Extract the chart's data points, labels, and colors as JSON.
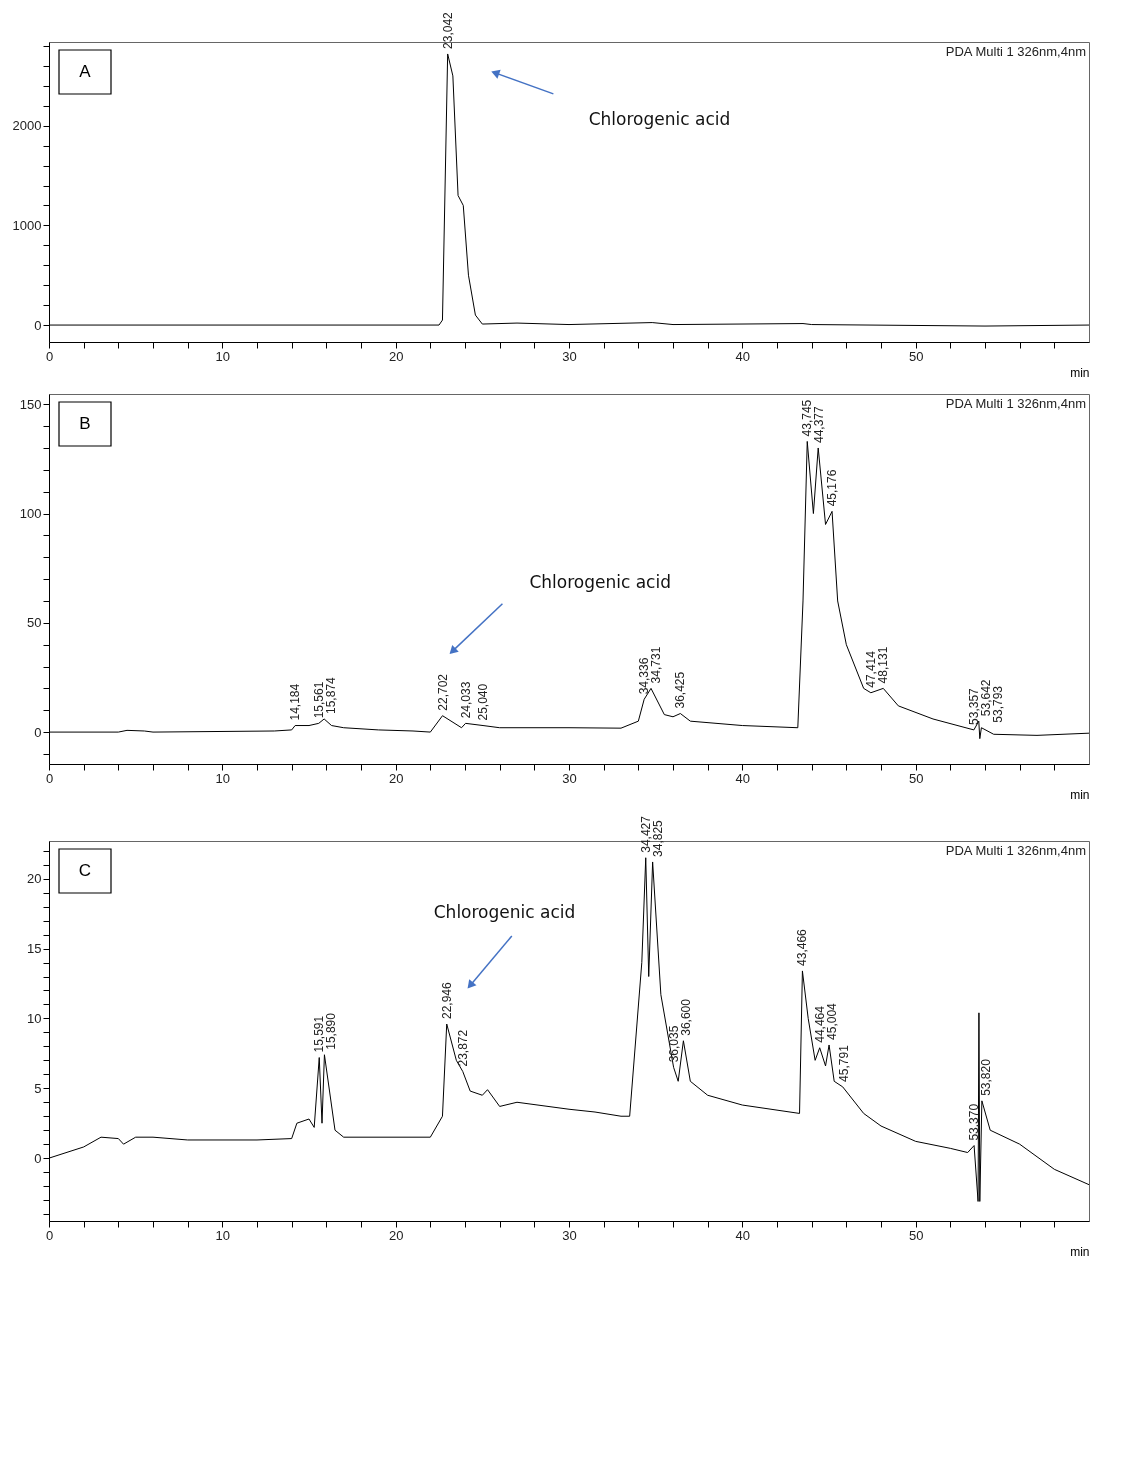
{
  "chart_data": [
    {
      "type": "line",
      "xlabel": "min",
      "xlim": [
        0,
        60
      ],
      "ylim": [
        -170,
        2840
      ],
      "grid": false,
      "legend": false,
      "xticks": [
        0,
        {
          "value": 2,
          "label": null
        },
        {
          "value": 4,
          "label": null
        },
        {
          "value": 6,
          "label": null
        },
        {
          "value": 8,
          "label": null
        },
        10,
        {
          "value": 12,
          "label": null
        },
        {
          "value": 14,
          "label": null
        },
        {
          "value": 16,
          "label": null
        },
        {
          "value": 18,
          "label": null
        },
        20,
        {
          "value": 22,
          "label": null
        },
        {
          "value": 24,
          "label": null
        },
        {
          "value": 26,
          "label": null
        },
        {
          "value": 28,
          "label": null
        },
        30,
        {
          "value": 32,
          "label": null
        },
        {
          "value": 34,
          "label": null
        },
        {
          "value": 36,
          "label": null
        },
        {
          "value": 38,
          "label": null
        },
        40,
        {
          "value": 42,
          "label": null
        },
        {
          "value": 44,
          "label": null
        },
        {
          "value": 46,
          "label": null
        },
        {
          "value": 48,
          "label": null
        },
        50,
        {
          "value": 52,
          "label": null
        },
        {
          "value": 54,
          "label": null
        },
        {
          "value": 56,
          "label": null
        },
        {
          "value": 58,
          "label": null
        }
      ],
      "yticks": [
        0,
        {
          "value": 200,
          "label": null
        },
        {
          "value": 400,
          "label": null
        },
        {
          "value": 600,
          "label": null
        },
        {
          "value": 800,
          "label": null
        },
        1000,
        {
          "value": 1200,
          "label": null
        },
        {
          "value": 1400,
          "label": null
        },
        {
          "value": 1600,
          "label": null
        },
        {
          "value": 1800,
          "label": null
        },
        2000,
        {
          "value": 2200,
          "label": null
        },
        {
          "value": 2400,
          "label": null
        },
        {
          "value": 2600,
          "label": null
        },
        {
          "value": 2800,
          "label": null
        }
      ],
      "series": [
        {
          "color": "#000000",
          "x": [
            0,
            22.5,
            22.7,
            23.0,
            23.3,
            23.6,
            23.9,
            24.2,
            24.6,
            25,
            27,
            30,
            34.8,
            36,
            43.5,
            44,
            54,
            60
          ],
          "values": [
            0,
            0,
            50,
            2720,
            2500,
            1300,
            1200,
            500,
            100,
            10,
            20,
            5,
            25,
            5,
            15,
            5,
            -10,
            0
          ]
        }
      ],
      "annotations": [
        "A",
        "PDA Multi 1 326nm,4nm",
        "Chlorogenic acid",
        {
          "text": "23,042",
          "x": 23.042,
          "y": 2720
        }
      ]
    },
    {
      "type": "line",
      "xlabel": "min",
      "xlim": [
        0,
        60
      ],
      "ylim": [
        -14.6,
        154.7
      ],
      "grid": false,
      "legend": false,
      "xticks": [
        0,
        {
          "value": 2,
          "label": null
        },
        {
          "value": 4,
          "label": null
        },
        {
          "value": 6,
          "label": null
        },
        {
          "value": 8,
          "label": null
        },
        10,
        {
          "value": 12,
          "label": null
        },
        {
          "value": 14,
          "label": null
        },
        {
          "value": 16,
          "label": null
        },
        {
          "value": 18,
          "label": null
        },
        20,
        {
          "value": 22,
          "label": null
        },
        {
          "value": 24,
          "label": null
        },
        {
          "value": 26,
          "label": null
        },
        {
          "value": 28,
          "label": null
        },
        30,
        {
          "value": 32,
          "label": null
        },
        {
          "value": 34,
          "label": null
        },
        {
          "value": 36,
          "label": null
        },
        {
          "value": 38,
          "label": null
        },
        40,
        {
          "value": 42,
          "label": null
        },
        {
          "value": 44,
          "label": null
        },
        {
          "value": 46,
          "label": null
        },
        {
          "value": 48,
          "label": null
        },
        50,
        {
          "value": 52,
          "label": null
        },
        {
          "value": 54,
          "label": null
        },
        {
          "value": 56,
          "label": null
        },
        {
          "value": 58,
          "label": null
        }
      ],
      "yticks": [
        {
          "value": -10,
          "label": null
        },
        0,
        {
          "value": 10,
          "label": null
        },
        {
          "value": 20,
          "label": null
        },
        {
          "value": 30,
          "label": null
        },
        {
          "value": 40,
          "label": null
        },
        50,
        {
          "value": 60,
          "label": null
        },
        {
          "value": 70,
          "label": null
        },
        {
          "value": 80,
          "label": null
        },
        {
          "value": 90,
          "label": null
        },
        100,
        {
          "value": 110,
          "label": null
        },
        {
          "value": 120,
          "label": null
        },
        {
          "value": 130,
          "label": null
        },
        {
          "value": 140,
          "label": null
        },
        150
      ],
      "series": [
        {
          "color": "#000000",
          "x": [
            0,
            4,
            4.5,
            5.5,
            6,
            13,
            14,
            14.2,
            15,
            15.561,
            15.874,
            16.3,
            17,
            19,
            21,
            22,
            22.702,
            23.8,
            24.033,
            25.04,
            26,
            30,
            33,
            34,
            34.336,
            34.731,
            35.5,
            36,
            36.425,
            37,
            40,
            43.2,
            43.5,
            43.745,
            44.1,
            44.377,
            44.8,
            45.176,
            45.5,
            46,
            47,
            47.414,
            48.131,
            49,
            51,
            53.357,
            53.642,
            53.7,
            53.793,
            54.5,
            57,
            60
          ],
          "values": [
            0,
            0,
            0.8,
            0.5,
            0,
            0.5,
            1,
            3,
            3,
            4,
            6,
            3,
            2,
            1,
            0.5,
            0,
            7.5,
            2,
            4,
            3,
            2,
            2,
            1.8,
            5,
            15,
            20,
            8,
            7,
            8.5,
            5,
            3,
            2,
            60,
            133,
            100,
            130,
            95,
            101,
            60,
            40,
            20,
            18,
            20,
            12,
            6,
            1,
            5,
            -3,
            2,
            -1,
            -1.5,
            -0.5
          ]
        }
      ],
      "annotations": [
        "B",
        "PDA Multi 1 326nm,4nm",
        "Chlorogenic acid",
        {
          "text": "14,184",
          "x": 14.184,
          "y": 3
        },
        {
          "text": "15,561",
          "x": 15.561,
          "y": 4
        },
        {
          "text": "15,874",
          "x": 15.874,
          "y": 6
        },
        {
          "text": "22,702",
          "x": 22.702,
          "y": 7.5
        },
        {
          "text": "24,033",
          "x": 24.033,
          "y": 4
        },
        {
          "text": "25,040",
          "x": 25.04,
          "y": 3
        },
        {
          "text": "34,336",
          "x": 34.336,
          "y": 15
        },
        {
          "text": "34,731",
          "x": 34.731,
          "y": 20
        },
        {
          "text": "36,425",
          "x": 36.425,
          "y": 8.5
        },
        {
          "text": "43,745",
          "x": 43.745,
          "y": 133
        },
        {
          "text": "44,377",
          "x": 44.377,
          "y": 130
        },
        {
          "text": "45,176",
          "x": 45.176,
          "y": 101
        },
        {
          "text": "47,414",
          "x": 47.414,
          "y": 18
        },
        {
          "text": "48,131",
          "x": 48.131,
          "y": 20
        },
        {
          "text": "53,357",
          "x": 53.357,
          "y": 1
        },
        {
          "text": "53,642",
          "x": 53.642,
          "y": 5
        },
        {
          "text": "53,793",
          "x": 53.793,
          "y": 2
        }
      ]
    },
    {
      "type": "line",
      "xlabel": "min",
      "xlim": [
        0,
        60
      ],
      "ylim": [
        -4.5,
        22.7
      ],
      "grid": false,
      "legend": false,
      "xticks": [
        0,
        {
          "value": 2,
          "label": null
        },
        {
          "value": 4,
          "label": null
        },
        {
          "value": 6,
          "label": null
        },
        {
          "value": 8,
          "label": null
        },
        10,
        {
          "value": 12,
          "label": null
        },
        {
          "value": 14,
          "label": null
        },
        {
          "value": 16,
          "label": null
        },
        {
          "value": 18,
          "label": null
        },
        20,
        {
          "value": 22,
          "label": null
        },
        {
          "value": 24,
          "label": null
        },
        {
          "value": 26,
          "label": null
        },
        {
          "value": 28,
          "label": null
        },
        30,
        {
          "value": 32,
          "label": null
        },
        {
          "value": 34,
          "label": null
        },
        {
          "value": 36,
          "label": null
        },
        {
          "value": 38,
          "label": null
        },
        40,
        {
          "value": 42,
          "label": null
        },
        {
          "value": 44,
          "label": null
        },
        {
          "value": 46,
          "label": null
        },
        {
          "value": 48,
          "label": null
        },
        50,
        {
          "value": 52,
          "label": null
        },
        {
          "value": 54,
          "label": null
        },
        {
          "value": 56,
          "label": null
        },
        {
          "value": 58,
          "label": null
        }
      ],
      "yticks": [
        {
          "value": -4,
          "label": null
        },
        {
          "value": -3,
          "label": null
        },
        {
          "value": -2,
          "label": null
        },
        {
          "value": -1,
          "label": null
        },
        0,
        {
          "value": 1,
          "label": null
        },
        {
          "value": 2,
          "label": null
        },
        {
          "value": 3,
          "label": null
        },
        {
          "value": 4,
          "label": null
        },
        5,
        {
          "value": 6,
          "label": null
        },
        {
          "value": 7,
          "label": null
        },
        {
          "value": 8,
          "label": null
        },
        {
          "value": 9,
          "label": null
        },
        10,
        {
          "value": 11,
          "label": null
        },
        {
          "value": 12,
          "label": null
        },
        {
          "value": 13,
          "label": null
        },
        {
          "value": 14,
          "label": null
        },
        15,
        {
          "value": 16,
          "label": null
        },
        {
          "value": 17,
          "label": null
        },
        {
          "value": 18,
          "label": null
        },
        {
          "value": 19,
          "label": null
        },
        20,
        {
          "value": 21,
          "label": null
        },
        {
          "value": 22,
          "label": null
        }
      ],
      "series": [
        {
          "color": "#000000",
          "x": [
            0,
            2,
            3,
            4,
            4.3,
            5,
            6,
            8,
            12,
            14,
            14.3,
            15,
            15.3,
            15.591,
            15.75,
            15.89,
            16.5,
            17,
            22,
            22.7,
            22.946,
            23.5,
            23.872,
            24.3,
            25,
            25.3,
            26,
            27,
            30,
            31.5,
            33,
            33.5,
            34.2,
            34.427,
            34.6,
            34.825,
            35.3,
            36.035,
            36.3,
            36.6,
            37,
            38,
            40,
            43.3,
            43.466,
            43.8,
            44.2,
            44.464,
            44.8,
            45.004,
            45.3,
            45.791,
            47,
            48,
            50,
            52,
            53,
            53.37,
            53.6,
            53.65,
            53.7,
            53.82,
            54.3,
            56,
            58,
            60
          ],
          "values": [
            0,
            0.8,
            1.5,
            1.4,
            1,
            1.5,
            1.5,
            1.3,
            1.3,
            1.4,
            2.5,
            2.8,
            2.2,
            7.2,
            2.5,
            7.4,
            2,
            1.5,
            1.5,
            3,
            9.6,
            7,
            6.2,
            4.8,
            4.5,
            4.9,
            3.7,
            4,
            3.5,
            3.3,
            3,
            3,
            14,
            21.5,
            13,
            21.2,
            11.7,
            6.5,
            5.5,
            8.4,
            5.5,
            4.5,
            3.8,
            3.2,
            13.4,
            10,
            7,
            7.9,
            6.6,
            8.1,
            5.5,
            5.1,
            3.2,
            2.3,
            1.2,
            0.7,
            0.4,
            0.9,
            -3.1,
            10.4,
            -3.1,
            4.1,
            2,
            1,
            -0.8,
            -1.9
          ]
        }
      ],
      "annotations": [
        "C",
        "PDA Multi 1 326nm,4nm",
        "Chlorogenic acid",
        {
          "text": "15,591",
          "x": 15.591,
          "y": 7.2
        },
        {
          "text": "15,890",
          "x": 15.89,
          "y": 7.4
        },
        {
          "text": "22,946",
          "x": 22.946,
          "y": 9.6
        },
        {
          "text": "23,872",
          "x": 23.872,
          "y": 6.2
        },
        {
          "text": "34,427",
          "x": 34.427,
          "y": 21.5
        },
        {
          "text": "34,825",
          "x": 34.825,
          "y": 21.2
        },
        {
          "text": "36,035",
          "x": 36.035,
          "y": 6.5
        },
        {
          "text": "36,600",
          "x": 36.6,
          "y": 8.4
        },
        {
          "text": "43,466",
          "x": 43.466,
          "y": 13.4
        },
        {
          "text": "44,464",
          "x": 44.464,
          "y": 7.9
        },
        {
          "text": "45,004",
          "x": 45.004,
          "y": 8.1
        },
        {
          "text": "45,791",
          "x": 45.791,
          "y": 5.1
        },
        {
          "text": "53,370",
          "x": 53.37,
          "y": 0.9
        },
        {
          "text": "53,820",
          "x": 53.82,
          "y": 4.1
        }
      ]
    }
  ]
}
